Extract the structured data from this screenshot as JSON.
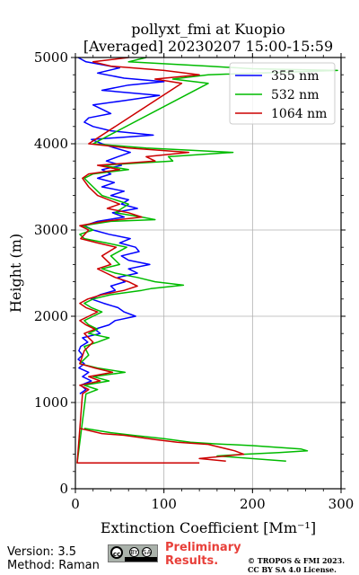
{
  "chart_data": {
    "type": "line",
    "title_line1": "pollyxt_fmi at Kuopio",
    "title_line2": "[Averaged] 20230207 15:00-15:59",
    "xlabel": "Extinction Coefficient [Mm⁻¹]",
    "ylabel": "Height (m)",
    "xlim": [
      0,
      300
    ],
    "ylim": [
      0,
      5000
    ],
    "xticks": [
      "0",
      "100",
      "200",
      "300"
    ],
    "yticks": [
      "0",
      "1000",
      "2000",
      "3000",
      "4000",
      "5000"
    ],
    "grid": true,
    "legend_position": "top-right",
    "series": [
      {
        "name": "355 nm",
        "color": "#0000ff",
        "points": [
          [
            5,
            1100
          ],
          [
            12,
            1150
          ],
          [
            6,
            1200
          ],
          [
            18,
            1250
          ],
          [
            8,
            1300
          ],
          [
            15,
            1350
          ],
          [
            4,
            1400
          ],
          [
            10,
            1450
          ],
          [
            3,
            1500
          ],
          [
            8,
            1550
          ],
          [
            4,
            1600
          ],
          [
            6,
            1650
          ],
          [
            14,
            1700
          ],
          [
            8,
            1750
          ],
          [
            28,
            1800
          ],
          [
            22,
            1850
          ],
          [
            38,
            1900
          ],
          [
            45,
            1950
          ],
          [
            68,
            2000
          ],
          [
            55,
            2050
          ],
          [
            48,
            2100
          ],
          [
            32,
            2150
          ],
          [
            18,
            2200
          ],
          [
            28,
            2250
          ],
          [
            45,
            2300
          ],
          [
            40,
            2350
          ],
          [
            56,
            2400
          ],
          [
            48,
            2450
          ],
          [
            70,
            2500
          ],
          [
            60,
            2550
          ],
          [
            84,
            2600
          ],
          [
            60,
            2650
          ],
          [
            52,
            2700
          ],
          [
            72,
            2750
          ],
          [
            68,
            2800
          ],
          [
            50,
            2850
          ],
          [
            62,
            2900
          ],
          [
            38,
            2950
          ],
          [
            20,
            3000
          ],
          [
            10,
            3050
          ],
          [
            25,
            3100
          ],
          [
            55,
            3150
          ],
          [
            42,
            3200
          ],
          [
            70,
            3250
          ],
          [
            52,
            3300
          ],
          [
            60,
            3350
          ],
          [
            40,
            3400
          ],
          [
            55,
            3450
          ],
          [
            30,
            3500
          ],
          [
            44,
            3550
          ],
          [
            25,
            3600
          ],
          [
            40,
            3650
          ],
          [
            30,
            3700
          ],
          [
            52,
            3750
          ],
          [
            35,
            3800
          ],
          [
            48,
            3850
          ],
          [
            62,
            3900
          ],
          [
            45,
            3950
          ],
          [
            30,
            4000
          ],
          [
            18,
            4050
          ],
          [
            88,
            4100
          ],
          [
            40,
            4150
          ],
          [
            20,
            4200
          ],
          [
            10,
            4250
          ],
          [
            15,
            4300
          ],
          [
            40,
            4350
          ],
          [
            30,
            4400
          ],
          [
            20,
            4450
          ],
          [
            55,
            4500
          ],
          [
            95,
            4560
          ],
          [
            30,
            4620
          ],
          [
            60,
            4680
          ],
          [
            100,
            4720
          ],
          [
            55,
            4760
          ],
          [
            25,
            4820
          ],
          [
            50,
            4880
          ],
          [
            12,
            4950
          ],
          [
            3,
            5000
          ]
        ]
      },
      {
        "name": "532 nm",
        "color": "#00bb00",
        "points": [
          [
            10,
            700
          ],
          [
            40,
            650
          ],
          [
            65,
            620
          ],
          [
            100,
            580
          ],
          [
            130,
            540
          ],
          [
            160,
            520
          ],
          [
            200,
            500
          ],
          [
            255,
            460
          ],
          [
            262,
            440
          ],
          [
            230,
            420
          ],
          [
            190,
            400
          ],
          [
            160,
            380
          ],
          [
            238,
            320
          ],
          [
            140,
            300
          ],
          [
            2,
            300
          ],
          [
            12,
            1100
          ],
          [
            25,
            1150
          ],
          [
            10,
            1200
          ],
          [
            38,
            1250
          ],
          [
            20,
            1300
          ],
          [
            56,
            1350
          ],
          [
            25,
            1400
          ],
          [
            5,
            1450
          ],
          [
            15,
            1550
          ],
          [
            10,
            1650
          ],
          [
            25,
            1700
          ],
          [
            38,
            1750
          ],
          [
            15,
            1800
          ],
          [
            25,
            1850
          ],
          [
            15,
            1900
          ],
          [
            10,
            1950
          ],
          [
            20,
            2000
          ],
          [
            30,
            2050
          ],
          [
            18,
            2100
          ],
          [
            10,
            2150
          ],
          [
            20,
            2200
          ],
          [
            40,
            2250
          ],
          [
            75,
            2300
          ],
          [
            85,
            2320
          ],
          [
            122,
            2360
          ],
          [
            90,
            2400
          ],
          [
            70,
            2450
          ],
          [
            45,
            2500
          ],
          [
            30,
            2550
          ],
          [
            50,
            2600
          ],
          [
            40,
            2700
          ],
          [
            58,
            2800
          ],
          [
            35,
            2850
          ],
          [
            10,
            2900
          ],
          [
            5,
            2950
          ],
          [
            20,
            3000
          ],
          [
            8,
            3050
          ],
          [
            40,
            3100
          ],
          [
            90,
            3120
          ],
          [
            75,
            3150
          ],
          [
            45,
            3200
          ],
          [
            60,
            3300
          ],
          [
            30,
            3400
          ],
          [
            20,
            3500
          ],
          [
            10,
            3600
          ],
          [
            20,
            3650
          ],
          [
            60,
            3700
          ],
          [
            30,
            3750
          ],
          [
            110,
            3800
          ],
          [
            105,
            3850
          ],
          [
            178,
            3900
          ],
          [
            80,
            3950
          ],
          [
            20,
            4000
          ],
          [
            150,
            4700
          ],
          [
            110,
            4750
          ],
          [
            150,
            4800
          ],
          [
            296,
            4850
          ],
          [
            200,
            4870
          ],
          [
            150,
            4900
          ],
          [
            60,
            4950
          ],
          [
            80,
            5000
          ]
        ]
      },
      {
        "name": "1064 nm",
        "color": "#cc0000",
        "points": [
          [
            5,
            700
          ],
          [
            30,
            640
          ],
          [
            55,
            620
          ],
          [
            90,
            570
          ],
          [
            115,
            540
          ],
          [
            150,
            515
          ],
          [
            180,
            440
          ],
          [
            190,
            400
          ],
          [
            140,
            350
          ],
          [
            170,
            320
          ],
          [
            140,
            300
          ],
          [
            2,
            300
          ],
          [
            8,
            1100
          ],
          [
            15,
            1150
          ],
          [
            5,
            1200
          ],
          [
            28,
            1250
          ],
          [
            15,
            1300
          ],
          [
            42,
            1350
          ],
          [
            22,
            1400
          ],
          [
            5,
            1450
          ],
          [
            10,
            1600
          ],
          [
            20,
            1700
          ],
          [
            10,
            1800
          ],
          [
            22,
            1850
          ],
          [
            12,
            1900
          ],
          [
            5,
            1950
          ],
          [
            15,
            2000
          ],
          [
            25,
            2050
          ],
          [
            12,
            2100
          ],
          [
            5,
            2150
          ],
          [
            14,
            2200
          ],
          [
            30,
            2250
          ],
          [
            55,
            2300
          ],
          [
            70,
            2350
          ],
          [
            60,
            2400
          ],
          [
            45,
            2450
          ],
          [
            35,
            2500
          ],
          [
            25,
            2550
          ],
          [
            40,
            2600
          ],
          [
            30,
            2700
          ],
          [
            46,
            2800
          ],
          [
            25,
            2850
          ],
          [
            6,
            2900
          ],
          [
            15,
            3000
          ],
          [
            5,
            3050
          ],
          [
            32,
            3100
          ],
          [
            75,
            3150
          ],
          [
            60,
            3200
          ],
          [
            36,
            3250
          ],
          [
            50,
            3300
          ],
          [
            25,
            3400
          ],
          [
            15,
            3500
          ],
          [
            8,
            3600
          ],
          [
            15,
            3650
          ],
          [
            50,
            3700
          ],
          [
            25,
            3750
          ],
          [
            90,
            3800
          ],
          [
            80,
            3850
          ],
          [
            128,
            3900
          ],
          [
            60,
            3950
          ],
          [
            15,
            4000
          ],
          [
            120,
            4700
          ],
          [
            90,
            4750
          ],
          [
            140,
            4800
          ],
          [
            100,
            4850
          ],
          [
            40,
            4900
          ],
          [
            20,
            4950
          ],
          [
            60,
            5000
          ]
        ]
      }
    ]
  },
  "footer": {
    "version": "Version: 3.5",
    "method": "Method: Raman",
    "license_badge": {
      "cc": "cc",
      "by": "BY",
      "sa": "SA"
    },
    "preliminary_line1": "Preliminary",
    "preliminary_line2": "Results.",
    "copyright_line1": "© TROPOS & FMI 2023.",
    "copyright_line2": "CC BY SA 4.0 License."
  }
}
